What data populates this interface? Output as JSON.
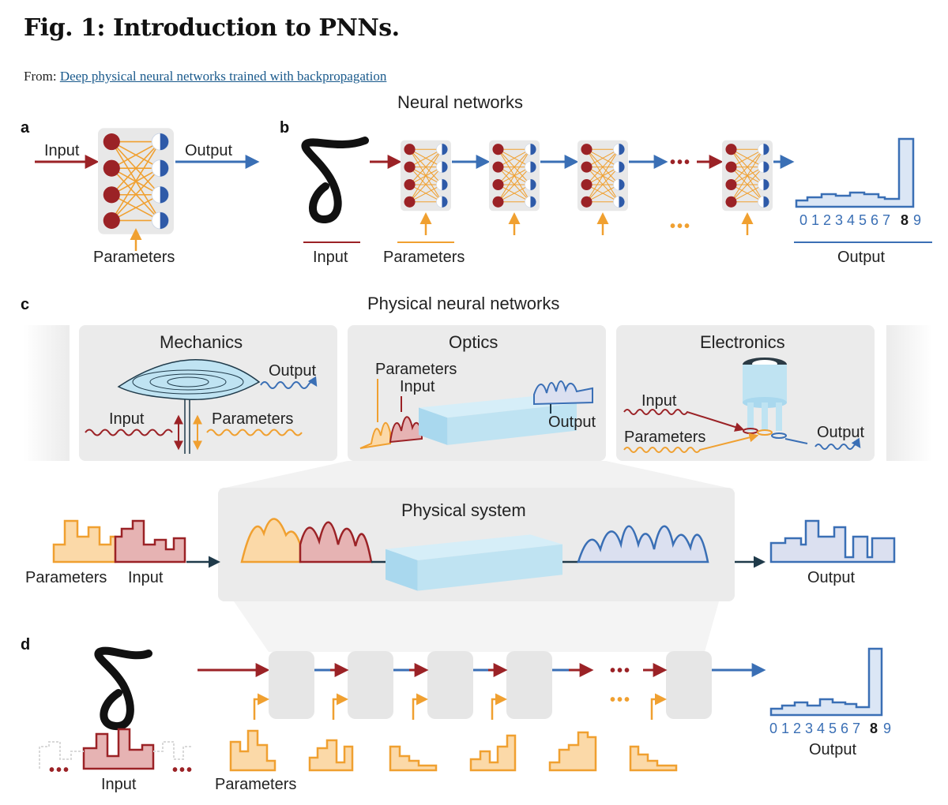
{
  "figure": {
    "title": "Fig. 1: Introduction to PNNs.",
    "from_prefix": "From:",
    "from_link": "Deep physical neural networks trained with backpropagation"
  },
  "panels": {
    "a": {
      "letter": "a",
      "input_label": "Input",
      "output_label": "Output",
      "parameters_label": "Parameters"
    },
    "b": {
      "letter": "b",
      "section_title": "Neural networks",
      "input_label": "Input",
      "parameters_label": "Parameters",
      "output_label": "Output",
      "ellipsis": "•••",
      "digits": [
        "0",
        "1",
        "2",
        "3",
        "4",
        "5",
        "6",
        "7",
        "8",
        "9"
      ],
      "highlighted_digit": "8"
    },
    "c": {
      "letter": "c",
      "section_title": "Physical neural networks",
      "mechanics": {
        "title": "Mechanics",
        "input_label": "Input",
        "parameters_label": "Parameters",
        "output_label": "Output"
      },
      "optics": {
        "title": "Optics",
        "parameters_label": "Parameters",
        "input_label": "Input",
        "output_label": "Output"
      },
      "electronics": {
        "title": "Electronics",
        "input_label": "Input",
        "parameters_label": "Parameters",
        "output_label": "Output"
      },
      "physical_system": {
        "title": "Physical system",
        "parameters_label": "Parameters",
        "input_label": "Input",
        "output_label": "Output"
      }
    },
    "d": {
      "letter": "d",
      "input_label": "Input",
      "parameters_label": "Parameters",
      "output_label": "Output",
      "ellipsis": "•••",
      "digits": [
        "0",
        "1",
        "2",
        "3",
        "4",
        "5",
        "6",
        "7",
        "8",
        "9"
      ],
      "highlighted_digit": "8"
    }
  },
  "colors": {
    "input_red": "#9b2226",
    "output_blue": "#3a6fb5",
    "param_orange": "#f0a030",
    "panel_grey": "#ebebeb",
    "glass_blue": "#bfe3f2"
  }
}
